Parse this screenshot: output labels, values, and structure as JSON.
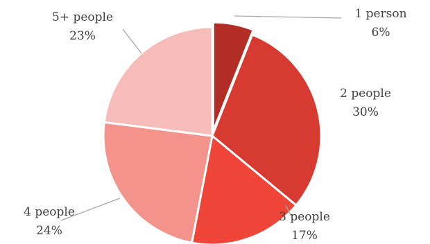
{
  "chart_data": {
    "type": "pie",
    "categories": [
      "1 person",
      "2 people",
      "3 people",
      "4 people",
      "5+ people"
    ],
    "values": [
      6,
      30,
      17,
      24,
      23
    ],
    "value_labels": [
      "6%",
      "30%",
      "17%",
      "24%",
      "23%"
    ],
    "colors": [
      "#b12d26",
      "#d63a31",
      "#f0463a",
      "#f4928c",
      "#f7bcb9"
    ],
    "exploded": [
      "1 person"
    ],
    "legend": "none"
  }
}
